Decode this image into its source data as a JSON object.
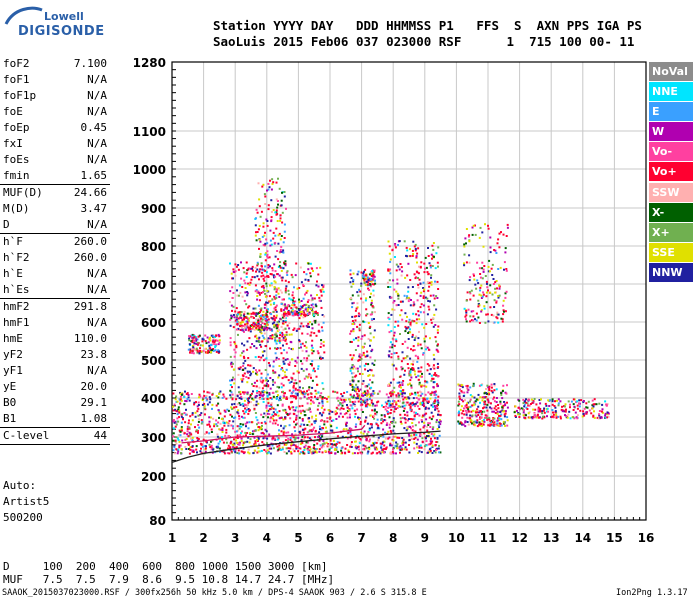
{
  "logo": {
    "top": "Lowell",
    "bottom": "DIGISONDE"
  },
  "header": {
    "line1": "Station YYYY DAY   DDD HHMMSS P1   FFS  S  AXN PPS IGA PS",
    "line2": "SaoLuis 2015 Feb06 037 023000 RSF      1  715 100 00- 11"
  },
  "params": [
    [
      [
        "foF2",
        "7.100"
      ],
      [
        "foF1",
        "N/A"
      ],
      [
        "foF1p",
        "N/A"
      ],
      [
        "foE",
        "N/A"
      ],
      [
        "foEp",
        "0.45"
      ],
      [
        "fxI",
        "N/A"
      ],
      [
        "foEs",
        "N/A"
      ],
      [
        "fmin",
        "1.65"
      ]
    ],
    [
      [
        "MUF(D)",
        "24.66"
      ],
      [
        "M(D)",
        "3.47"
      ],
      [
        "D",
        "N/A"
      ]
    ],
    [
      [
        "h`F",
        "260.0"
      ],
      [
        "h`F2",
        "260.0"
      ],
      [
        "h`E",
        "N/A"
      ],
      [
        "h`Es",
        "N/A"
      ]
    ],
    [
      [
        "hmF2",
        "291.8"
      ],
      [
        "hmF1",
        "N/A"
      ],
      [
        "hmE",
        "110.0"
      ],
      [
        "yF2",
        "23.8"
      ],
      [
        "yF1",
        "N/A"
      ],
      [
        "yE",
        "20.0"
      ],
      [
        "B0",
        "29.1"
      ],
      [
        "B1",
        "1.08"
      ]
    ],
    [
      [
        "C-level",
        "44"
      ]
    ]
  ],
  "tail": {
    "auto": "Auto:",
    "artist": "Artist5",
    "code": "500200"
  },
  "dmuf": {
    "d_line": "D     100  200  400  600  800 1000 1500 3000 [km]",
    "muf_line": "MUF   7.5  7.5  7.9  8.6  9.5 10.8 14.7 24.7 [MHz]"
  },
  "footer": {
    "left": "SAAOK_2015037023000.RSF / 300fx256h 50 kHz 5.0 km / DPS-4 SAAOK 903 / 2.6 S 315.8 E",
    "right": "Ion2Png 1.3.17"
  },
  "legend": [
    {
      "name": "NoVal",
      "color": "#8c8c8c"
    },
    {
      "name": "NNE",
      "color": "#00e5ff"
    },
    {
      "name": "E",
      "color": "#3aa0ff"
    },
    {
      "name": "W",
      "color": "#b000b0"
    },
    {
      "name": "Vo-",
      "color": "#ff40a0"
    },
    {
      "name": "Vo+",
      "color": "#ff0030"
    },
    {
      "name": "SSW",
      "color": "#ffb0b0"
    },
    {
      "name": "X-",
      "color": "#006000"
    },
    {
      "name": "X+",
      "color": "#70b050"
    },
    {
      "name": "SSE",
      "color": "#e0e000"
    },
    {
      "name": "NNW",
      "color": "#2020a0"
    }
  ],
  "chart_data": {
    "type": "scatter",
    "x_ticks": [
      1,
      2,
      3,
      4,
      5,
      6,
      7,
      8,
      9,
      10,
      11,
      12,
      13,
      14,
      15,
      16
    ],
    "y_ticks": [
      80,
      200,
      300,
      400,
      500,
      600,
      700,
      800,
      900,
      1000,
      1100,
      1280
    ],
    "xlim": [
      1,
      16
    ],
    "ylim": [
      80,
      1280
    ],
    "y_scale": "quasi-log",
    "grid": true,
    "trace": {
      "color": "#202020",
      "points": [
        [
          1.0,
          235
        ],
        [
          1.5,
          248
        ],
        [
          2,
          258
        ],
        [
          3,
          270
        ],
        [
          4,
          280
        ],
        [
          5,
          288
        ],
        [
          6,
          295
        ],
        [
          7,
          302
        ],
        [
          8,
          308
        ],
        [
          9,
          312
        ],
        [
          9.5,
          315
        ]
      ]
    },
    "profile": {
      "color": "#d01060",
      "points": [
        [
          1.3,
          285
        ],
        [
          2,
          290
        ],
        [
          3,
          300
        ],
        [
          4,
          302
        ],
        [
          5,
          305
        ],
        [
          6,
          310
        ],
        [
          7,
          320
        ],
        [
          7.1,
          330
        ]
      ]
    },
    "scatter_regions": [
      {
        "x": [
          1.0,
          9.5
        ],
        "y": [
          260,
          420
        ],
        "n": 1600
      },
      {
        "x": [
          2.8,
          5.8
        ],
        "y": [
          400,
          760
        ],
        "n": 700
      },
      {
        "x": [
          3.6,
          4.6
        ],
        "y": [
          550,
          980
        ],
        "n": 300
      },
      {
        "x": [
          7.8,
          9.4
        ],
        "y": [
          380,
          820
        ],
        "n": 500
      },
      {
        "x": [
          6.6,
          7.4
        ],
        "y": [
          380,
          740
        ],
        "n": 250
      },
      {
        "x": [
          10.0,
          11.6
        ],
        "y": [
          330,
          440
        ],
        "n": 300
      },
      {
        "x": [
          10.2,
          11.6
        ],
        "y": [
          600,
          860
        ],
        "n": 180
      },
      {
        "x": [
          11.8,
          14.8
        ],
        "y": [
          350,
          400
        ],
        "n": 240
      },
      {
        "x": [
          1.5,
          2.5
        ],
        "y": [
          520,
          570
        ],
        "n": 140
      },
      {
        "x": [
          3.0,
          4.0
        ],
        "y": [
          580,
          630
        ],
        "n": 140
      },
      {
        "x": [
          4.5,
          5.6
        ],
        "y": [
          620,
          650
        ],
        "n": 100
      },
      {
        "x": [
          7.0,
          7.4
        ],
        "y": [
          700,
          740
        ],
        "n": 60
      }
    ]
  }
}
